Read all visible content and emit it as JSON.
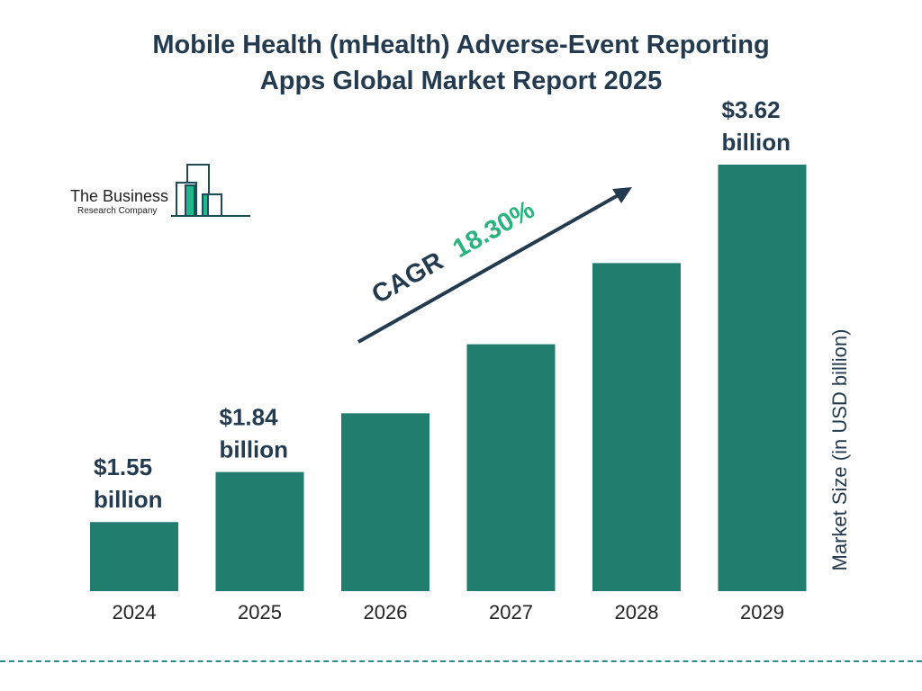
{
  "title_line1": "Mobile Health (mHealth) Adverse-Event Reporting",
  "title_line2": "Apps Global Market Report 2025",
  "logo": {
    "line1": "The Business",
    "line2": "Research Company"
  },
  "colors": {
    "bar": "#217d6d",
    "text": "#243a4f",
    "cagr_value": "#2bb37e",
    "divider": "#2a8c84"
  },
  "chart_data": {
    "type": "bar",
    "categories": [
      "2024",
      "2025",
      "2026",
      "2027",
      "2028",
      "2029"
    ],
    "values": [
      1.55,
      1.84,
      2.18,
      2.58,
      3.05,
      3.62
    ],
    "data_labels": [
      {
        "category": "2024",
        "value": "$1.55",
        "unit": "billion"
      },
      {
        "category": "2025",
        "value": "$1.84",
        "unit": "billion"
      },
      {
        "category": "2029",
        "value": "$3.62",
        "unit": "billion"
      }
    ],
    "ylabel": "Market Size (in USD billion)",
    "annotation": {
      "label": "CAGR",
      "value": "18.30%"
    },
    "grid": false,
    "legend": "none"
  }
}
